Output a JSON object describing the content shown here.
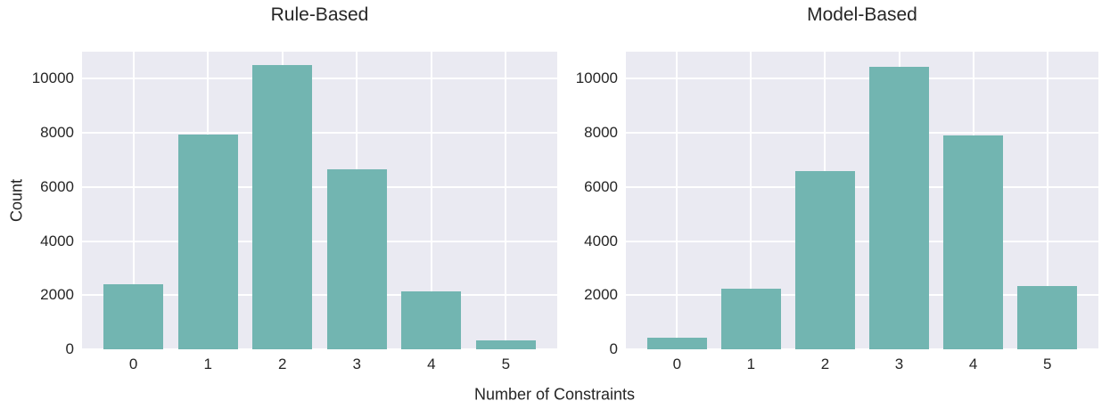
{
  "figure": {
    "xlabel": "Number of Constraints",
    "ylabel": "Count"
  },
  "colors": {
    "bar_fill": "#72b5b1",
    "plot_background": "#eaeaf2",
    "gridline": "#ffffff",
    "text": "#262626"
  },
  "chart_data": [
    {
      "type": "bar",
      "title": "Rule-Based",
      "xlabel": "Number of Constraints",
      "ylabel": "Count",
      "categories": [
        "0",
        "1",
        "2",
        "3",
        "4",
        "5"
      ],
      "values": [
        2400,
        7950,
        10500,
        6650,
        2150,
        330
      ],
      "ylim": [
        0,
        11000
      ],
      "yticks": [
        0,
        2000,
        4000,
        6000,
        8000,
        10000
      ],
      "grid": "on",
      "legend": "none"
    },
    {
      "type": "bar",
      "title": "Model-Based",
      "xlabel": "Number of Constraints",
      "ylabel": "Count",
      "categories": [
        "0",
        "1",
        "2",
        "3",
        "4",
        "5"
      ],
      "values": [
        430,
        2250,
        6600,
        10450,
        7900,
        2350
      ],
      "ylim": [
        0,
        11000
      ],
      "yticks": [
        0,
        2000,
        4000,
        6000,
        8000,
        10000
      ],
      "grid": "on",
      "legend": "none"
    }
  ]
}
